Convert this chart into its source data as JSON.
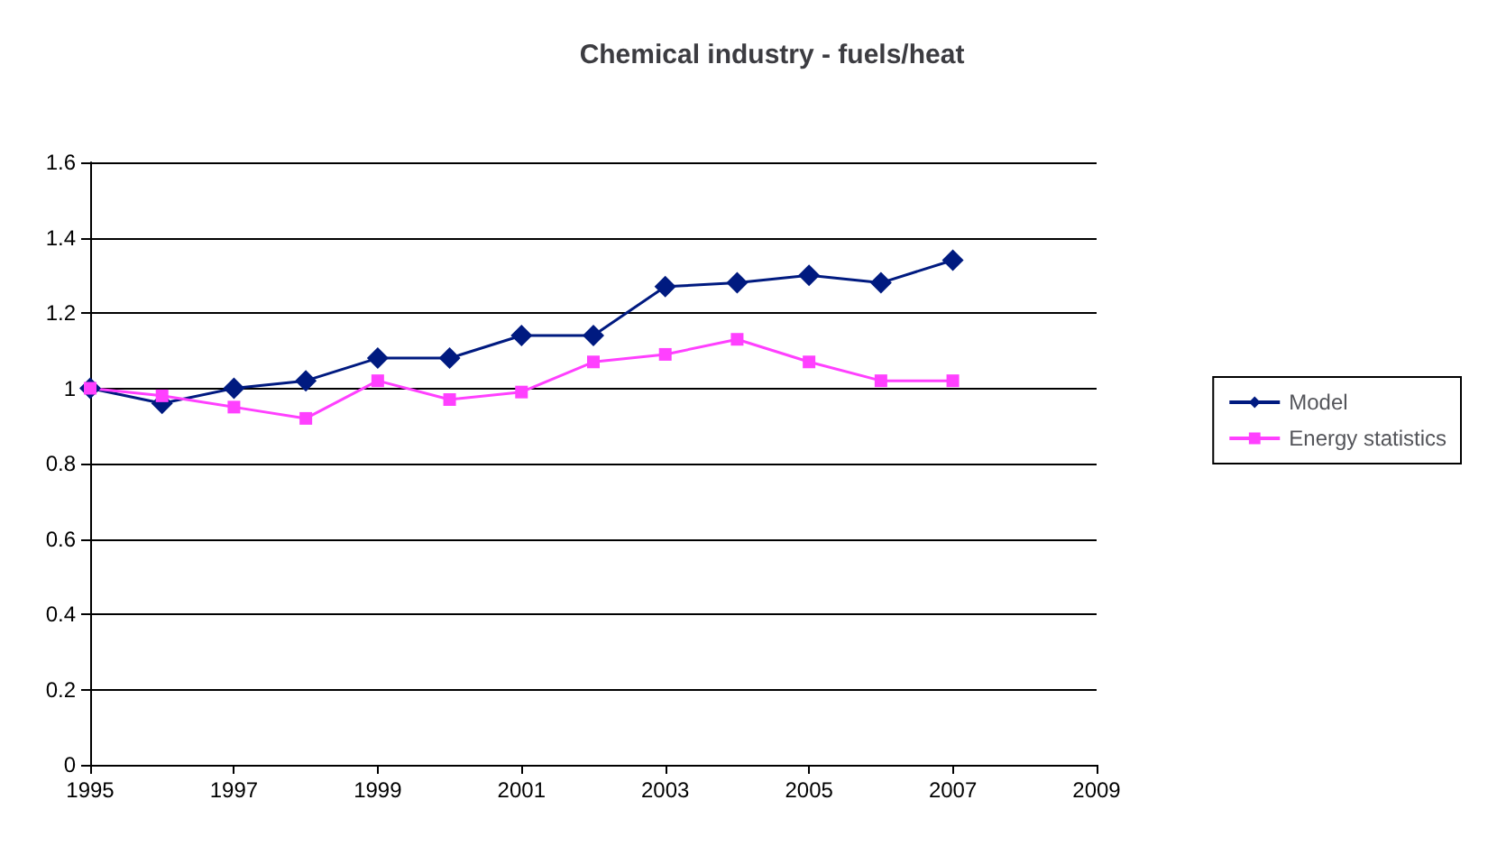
{
  "chart_data": {
    "type": "line",
    "title": "Chemical industry - fuels/heat",
    "x": [
      1995,
      1996,
      1997,
      1998,
      1999,
      2000,
      2001,
      2002,
      2003,
      2004,
      2005,
      2006,
      2007
    ],
    "series": [
      {
        "name": "Model",
        "color": "#001a80",
        "marker": "diamond",
        "values": [
          1.0,
          0.96,
          1.0,
          1.02,
          1.08,
          1.08,
          1.14,
          1.14,
          1.27,
          1.28,
          1.3,
          1.28,
          1.34
        ]
      },
      {
        "name": "Energy statistics",
        "color": "#ff40ff",
        "marker": "square",
        "values": [
          1.0,
          0.98,
          0.95,
          0.92,
          1.02,
          0.97,
          0.99,
          1.07,
          1.09,
          1.13,
          1.07,
          1.02,
          1.02
        ]
      }
    ],
    "xlim": [
      1995,
      2009
    ],
    "xticks": [
      1995,
      1997,
      1999,
      2001,
      2003,
      2005,
      2007,
      2009
    ],
    "ylim": [
      0,
      1.6
    ],
    "yticks": [
      0,
      0.2,
      0.4,
      0.6,
      0.8,
      1,
      1.2,
      1.4,
      1.6
    ],
    "grid": "y",
    "legend": "right",
    "line_style": "solid"
  }
}
